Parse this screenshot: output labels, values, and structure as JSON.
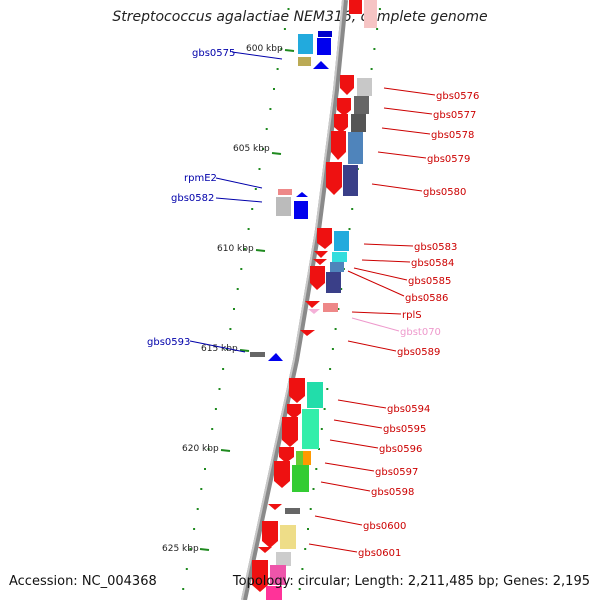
{
  "title": "Streptococcus agalactiae NEM316, complete genome",
  "accession": "Accession: NC_004368",
  "summary": "Topology: circular; Length: 2,211,485 bp; Genes: 2,195",
  "colors": {
    "backbone": "#7a7a7a",
    "tick": "#1f8a1f",
    "gene_label_forward": "#cc0000",
    "gene_label_reverse": "#0000aa",
    "gene_label_rna": "#ee99cc"
  },
  "scale_labels": [
    "600 kbp",
    "605 kbp",
    "610 kbp",
    "615 kbp",
    "620 kbp",
    "625 kbp"
  ],
  "gene_labels": [
    {
      "text": "gbs0575",
      "strand": "reverse"
    },
    {
      "text": "gbs0576",
      "strand": "forward"
    },
    {
      "text": "gbs0577",
      "strand": "forward"
    },
    {
      "text": "gbs0578",
      "strand": "forward"
    },
    {
      "text": "gbs0579",
      "strand": "forward"
    },
    {
      "text": "gbs0580",
      "strand": "forward"
    },
    {
      "text": "rpmE2",
      "strand": "reverse"
    },
    {
      "text": "gbs0582",
      "strand": "reverse"
    },
    {
      "text": "gbs0583",
      "strand": "forward"
    },
    {
      "text": "gbs0584",
      "strand": "forward"
    },
    {
      "text": "gbs0585",
      "strand": "forward"
    },
    {
      "text": "gbs0586",
      "strand": "forward"
    },
    {
      "text": "rplS",
      "strand": "forward"
    },
    {
      "text": "gbst070",
      "strand": "rna"
    },
    {
      "text": "gbs0589",
      "strand": "forward"
    },
    {
      "text": "gbs0593",
      "strand": "reverse"
    },
    {
      "text": "gbs0594",
      "strand": "forward"
    },
    {
      "text": "gbs0595",
      "strand": "forward"
    },
    {
      "text": "gbs0596",
      "strand": "forward"
    },
    {
      "text": "gbs0597",
      "strand": "forward"
    },
    {
      "text": "gbs0598",
      "strand": "forward"
    },
    {
      "text": "gbs0600",
      "strand": "forward"
    },
    {
      "text": "gbs0601",
      "strand": "forward"
    }
  ]
}
